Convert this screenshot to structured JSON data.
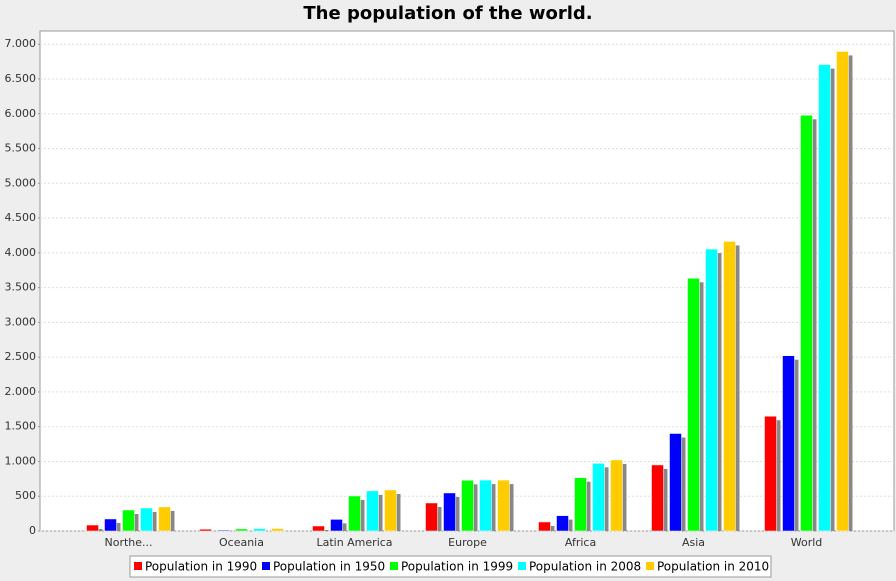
{
  "chart_data": {
    "type": "bar",
    "title": "The population of the world.",
    "categories": [
      "Northe...",
      "Oceania",
      "Latin America",
      "Europe",
      "Africa",
      "Asia",
      "World"
    ],
    "series": [
      {
        "name": "Population in 1990",
        "color": "#ff0000",
        "values": [
          86,
          26,
          72,
          403,
          130,
          950,
          1650
        ]
      },
      {
        "name": "Population in 1950",
        "color": "#0000ff",
        "values": [
          173,
          13,
          167,
          547,
          221,
          1402,
          2521
        ]
      },
      {
        "name": "Population in 1999",
        "color": "#00ff00",
        "values": [
          302,
          30,
          504,
          729,
          767,
          3634,
          5978
        ]
      },
      {
        "name": "Population in 2008",
        "color": "#00ffff",
        "values": [
          331,
          35,
          577,
          732,
          973,
          4054,
          6707
        ]
      },
      {
        "name": "Population in 2010",
        "color": "#ffcc00",
        "values": [
          346,
          36,
          590,
          732,
          1022,
          4164,
          6896
        ]
      }
    ],
    "ylim": [
      0,
      7190
    ],
    "yticks": [
      0,
      500,
      {
        "value": 1000,
        "label": "1.000"
      },
      {
        "value": 1500,
        "label": "1.500"
      },
      {
        "value": 2000,
        "label": "2.000"
      },
      {
        "value": 2500,
        "label": "2.500"
      },
      {
        "value": 3000,
        "label": "3.000"
      },
      {
        "value": 3500,
        "label": "3.500"
      },
      {
        "value": 4000,
        "label": "4.000"
      },
      {
        "value": 4500,
        "label": "4.500"
      },
      {
        "value": 5000,
        "label": "5.000"
      },
      {
        "value": 5500,
        "label": "5.500"
      },
      {
        "value": 6000,
        "label": "6.000"
      },
      {
        "value": 6500,
        "label": "6.500"
      },
      {
        "value": 7000,
        "label": "7.000"
      }
    ],
    "grid": true,
    "legend": "bottom"
  }
}
